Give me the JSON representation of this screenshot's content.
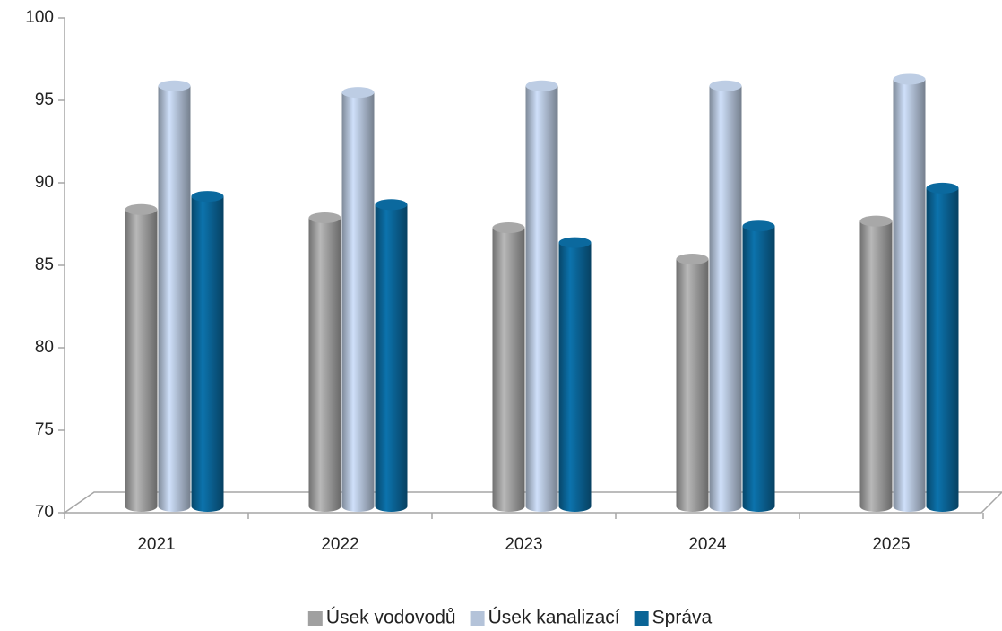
{
  "chart_data": {
    "type": "bar3d",
    "categories": [
      "2021",
      "2022",
      "2023",
      "2024",
      "2025"
    ],
    "series": [
      {
        "name": "Úsek vodovodů",
        "color": "#a0a0a0",
        "values": [
          88.0,
          87.5,
          86.9,
          85.0,
          87.3
        ]
      },
      {
        "name": "Úsek kanalizací",
        "color": "#b4c3d9",
        "values": [
          95.5,
          95.1,
          95.5,
          95.5,
          95.9
        ]
      },
      {
        "name": "Správa",
        "color": "#0a6496",
        "values": [
          88.8,
          88.3,
          86.0,
          87.0,
          89.3
        ]
      }
    ],
    "ylim": [
      70,
      100
    ],
    "yticks": [
      70,
      75,
      80,
      85,
      90,
      95,
      100
    ],
    "legend": "bottom"
  }
}
